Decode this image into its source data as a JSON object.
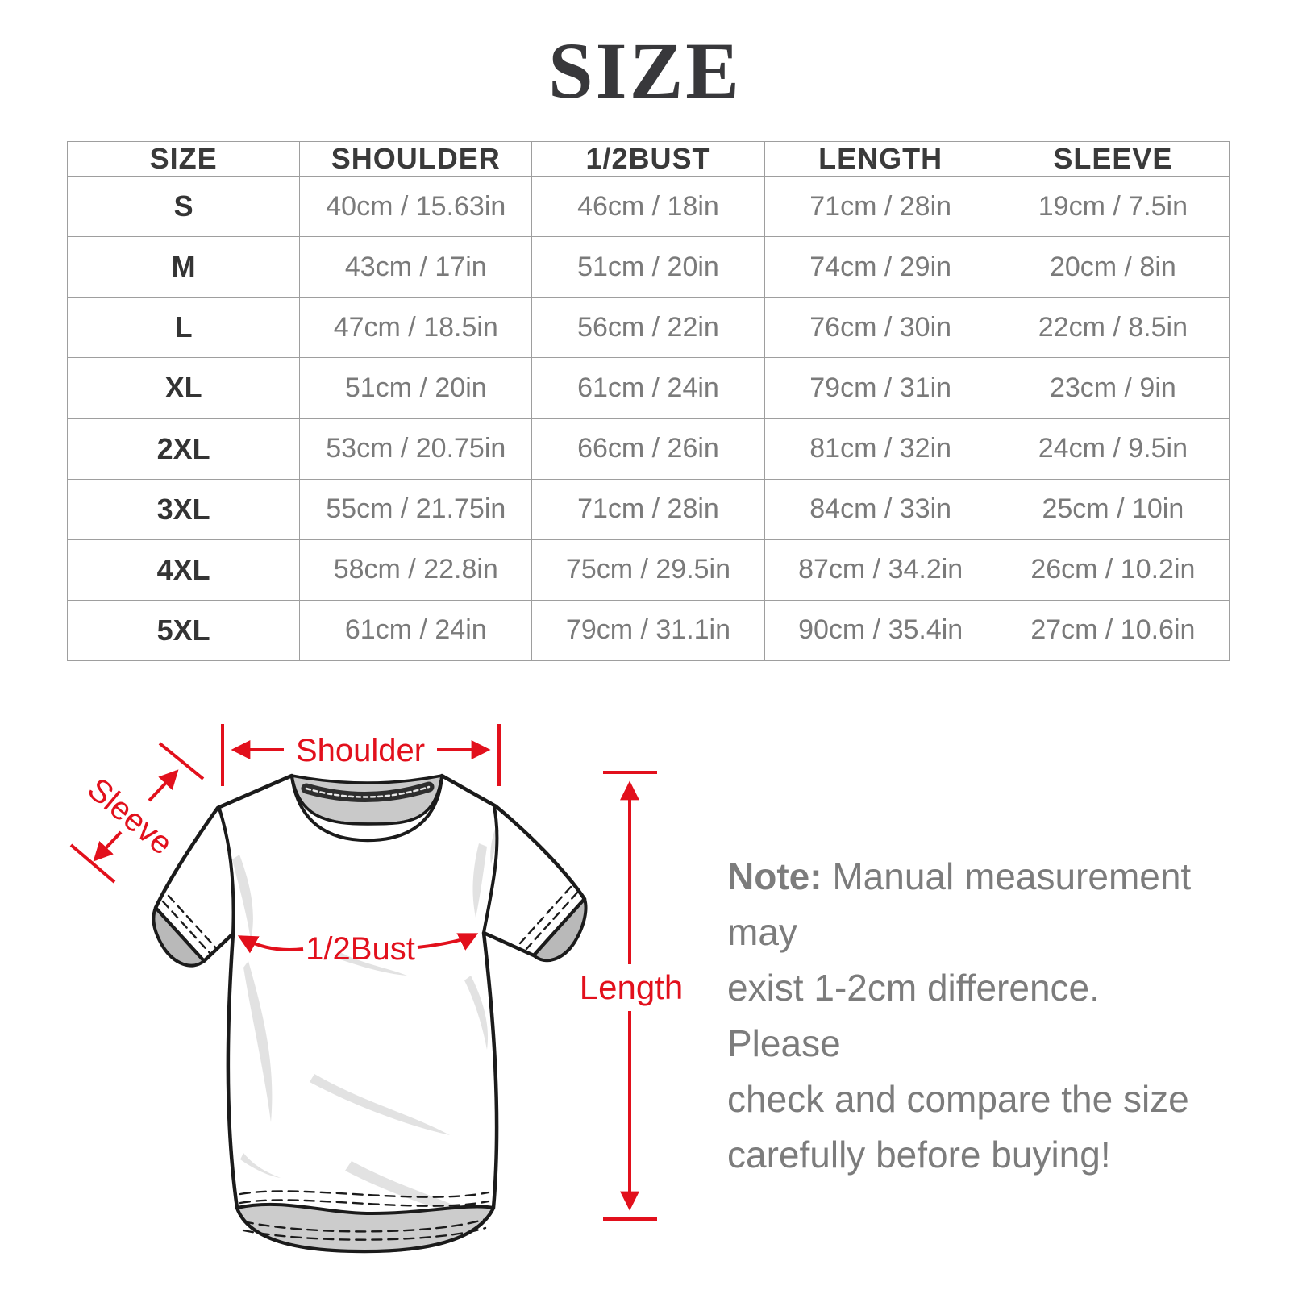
{
  "title": "SIZE",
  "table": {
    "headers": [
      "SIZE",
      "SHOULDER",
      "1/2BUST",
      "LENGTH",
      "SLEEVE"
    ],
    "rows": [
      [
        "S",
        "40cm / 15.63in",
        "46cm / 18in",
        "71cm / 28in",
        "19cm / 7.5in"
      ],
      [
        "M",
        "43cm / 17in",
        "51cm / 20in",
        "74cm / 29in",
        "20cm / 8in"
      ],
      [
        "L",
        "47cm / 18.5in",
        "56cm / 22in",
        "76cm / 30in",
        "22cm / 8.5in"
      ],
      [
        "XL",
        "51cm / 20in",
        "61cm / 24in",
        "79cm / 31in",
        "23cm / 9in"
      ],
      [
        "2XL",
        "53cm / 20.75in",
        "66cm / 26in",
        "81cm / 32in",
        "24cm / 9.5in"
      ],
      [
        "3XL",
        "55cm / 21.75in",
        "71cm / 28in",
        "84cm / 33in",
        "25cm / 10in"
      ],
      [
        "4XL",
        "58cm / 22.8in",
        "75cm / 29.5in",
        "87cm / 34.2in",
        "26cm / 10.2in"
      ],
      [
        "5XL",
        "61cm / 24in",
        "79cm / 31.1in",
        "90cm / 35.4in",
        "27cm / 10.6in"
      ]
    ]
  },
  "diagram": {
    "labels": {
      "shoulder": "Shoulder",
      "sleeve": "Sleeve",
      "bust": "1/2Bust",
      "length": "Length"
    },
    "accent_color": "#e2101c"
  },
  "note": {
    "label": "Note:",
    "line1": "Manual measurement may",
    "lines": [
      "exist 1-2cm difference. Please",
      "check and compare the size",
      "carefully before buying!"
    ]
  }
}
